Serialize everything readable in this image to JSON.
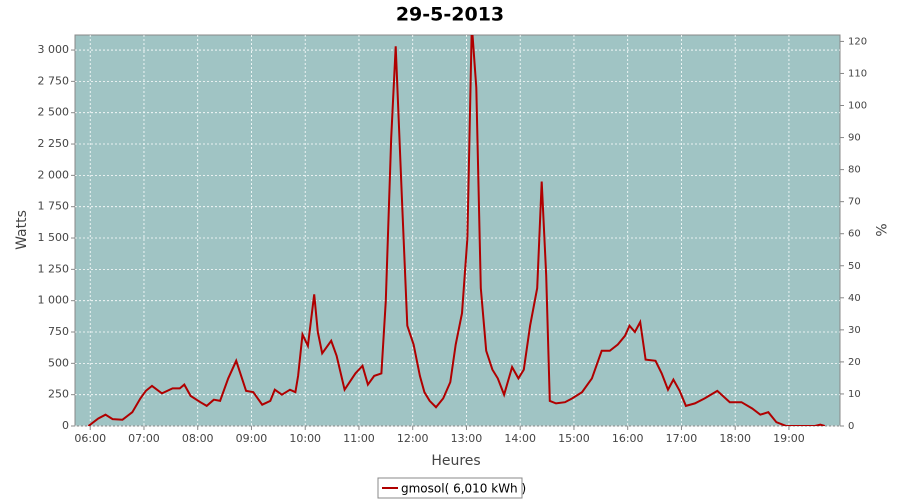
{
  "chart_data": {
    "type": "line",
    "title": "29-5-2013",
    "x_label": "Heures",
    "y_label": "Watts",
    "y2_label": "%",
    "x": [
      "05:58",
      "06:09",
      "06:17",
      "06:25",
      "06:36",
      "06:47",
      "06:56",
      "07:02",
      "07:09",
      "07:20",
      "07:32",
      "07:40",
      "07:45",
      "07:52",
      "08:03",
      "08:10",
      "08:18",
      "08:25",
      "08:34",
      "08:43",
      "08:54",
      "09:02",
      "09:12",
      "09:21",
      "09:26",
      "09:34",
      "09:43",
      "09:49",
      "09:52",
      "09:57",
      "10:03",
      "10:10",
      "10:14",
      "10:19",
      "10:29",
      "10:35",
      "10:44",
      "10:56",
      "11:04",
      "11:10",
      "11:17",
      "11:25",
      "11:30",
      "11:36",
      "11:41",
      "11:48",
      "11:54",
      "12:01",
      "12:08",
      "12:13",
      "12:19",
      "12:26",
      "12:34",
      "12:42",
      "12:48",
      "12:55",
      "13:01",
      "13:06",
      "13:11",
      "13:16",
      "13:22",
      "13:29",
      "13:35",
      "13:42",
      "13:51",
      "13:58",
      "14:04",
      "14:11",
      "14:19",
      "14:24",
      "14:29",
      "14:33",
      "14:40",
      "14:50",
      "14:58",
      "15:09",
      "15:20",
      "15:31",
      "15:40",
      "15:49",
      "15:57",
      "16:02",
      "16:08",
      "16:14",
      "16:20",
      "16:31",
      "16:38",
      "16:45",
      "16:51",
      "16:58",
      "17:05",
      "17:15",
      "17:26",
      "17:40",
      "17:54",
      "18:07",
      "18:19",
      "18:28",
      "18:37",
      "18:46",
      "18:57",
      "19:12",
      "19:29",
      "19:35",
      "19:40"
    ],
    "series": [
      {
        "name": "gmosol( 6,010 kWh )",
        "color": "#b00000",
        "values": [
          0,
          60,
          90,
          55,
          50,
          110,
          220,
          280,
          320,
          260,
          300,
          300,
          330,
          240,
          190,
          160,
          210,
          200,
          380,
          520,
          280,
          270,
          170,
          200,
          290,
          250,
          290,
          270,
          400,
          730,
          640,
          1050,
          750,
          580,
          680,
          560,
          290,
          420,
          480,
          330,
          400,
          420,
          1000,
          2300,
          3030,
          1800,
          800,
          650,
          400,
          270,
          200,
          150,
          220,
          350,
          650,
          900,
          1500,
          3200,
          2700,
          1100,
          600,
          450,
          380,
          250,
          470,
          380,
          450,
          800,
          1100,
          1950,
          1200,
          200,
          180,
          190,
          220,
          270,
          380,
          600,
          600,
          650,
          720,
          800,
          750,
          830,
          530,
          520,
          420,
          290,
          370,
          280,
          160,
          180,
          220,
          280,
          190,
          190,
          140,
          90,
          110,
          30,
          0,
          0,
          0,
          10,
          0
        ]
      }
    ],
    "xlim": [
      "05:43",
      "19:57"
    ],
    "xticks": [
      "06:00",
      "07:00",
      "08:00",
      "09:00",
      "10:00",
      "11:00",
      "12:00",
      "13:00",
      "14:00",
      "15:00",
      "16:00",
      "17:00",
      "18:00",
      "19:00"
    ],
    "ylim": [
      0,
      3120
    ],
    "yticks": [
      0,
      250,
      500,
      750,
      {
        "value": 1000,
        "label": "1 000"
      },
      {
        "value": 1250,
        "label": "1 250"
      },
      {
        "value": 1500,
        "label": "1 500"
      },
      {
        "value": 1750,
        "label": "1 750"
      },
      {
        "value": 2000,
        "label": "2 000"
      },
      {
        "value": 2250,
        "label": "2 250"
      },
      {
        "value": 2500,
        "label": "2 500"
      },
      {
        "value": 2750,
        "label": "2 750"
      },
      {
        "value": 3000,
        "label": "3 000"
      }
    ],
    "y2lim": [
      0,
      122
    ],
    "y2ticks": [
      0,
      10,
      20,
      30,
      40,
      50,
      60,
      70,
      80,
      90,
      100,
      110,
      120
    ],
    "grid": true,
    "background": "#a0c4c4"
  }
}
